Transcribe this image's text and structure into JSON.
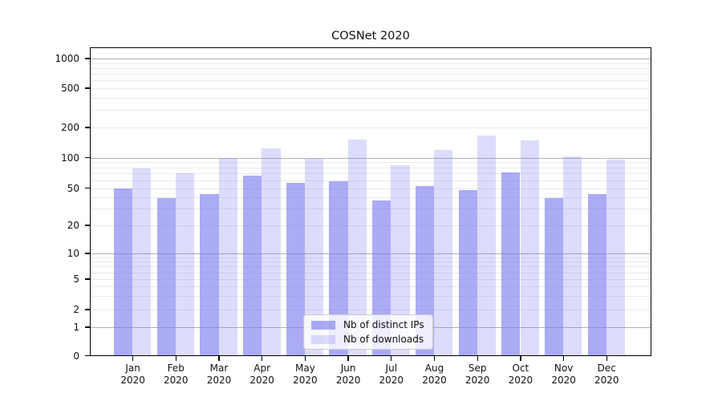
{
  "page": {
    "background": "#ffffff"
  },
  "chart_data": {
    "type": "bar",
    "title": "COSNet 2020",
    "categories": [
      "Jan",
      "Feb",
      "Mar",
      "Apr",
      "May",
      "Jun",
      "Jul",
      "Aug",
      "Sep",
      "Oct",
      "Nov",
      "Dec"
    ],
    "category_year": "2020",
    "series": [
      {
        "name": "Nb of distinct IPs",
        "values": [
          50,
          39,
          43,
          67,
          56,
          58,
          37,
          52,
          48,
          71,
          39,
          43
        ],
        "fill": "rgba(120,120,240,0.62)"
      },
      {
        "name": "Nb of downloads",
        "values": [
          78,
          70,
          100,
          124,
          97,
          151,
          84,
          119,
          167,
          148,
          104,
          96
        ],
        "fill": "rgba(120,120,240,0.26)"
      }
    ],
    "yscale": "symlog",
    "yticks": [
      0,
      1,
      2,
      5,
      10,
      20,
      50,
      100,
      200,
      500,
      1000
    ],
    "ytick_labels": [
      "0",
      "1",
      "2",
      "5",
      "10",
      "20",
      "50",
      "100",
      "200",
      "500",
      "1000"
    ],
    "ylim": [
      0,
      1270
    ],
    "grid": true,
    "legend_position": "lower center",
    "colors": {
      "bar_base": "#7878f0",
      "major_grid": "#b0b0b0",
      "minor_grid": "#e9e9e9",
      "spine": "#000000",
      "text": "#111111"
    }
  }
}
